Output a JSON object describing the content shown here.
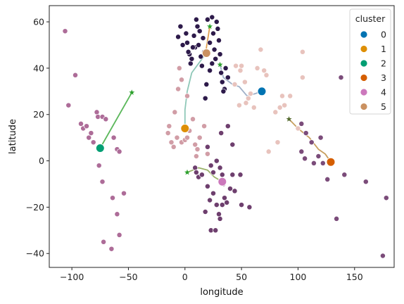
{
  "chart_data": {
    "type": "scatter",
    "xlabel": "longitude",
    "ylabel": "latitude",
    "xlim": [
      -120,
      185
    ],
    "ylim": [
      -46,
      67
    ],
    "xticks": [
      -100,
      -50,
      0,
      50,
      100,
      150
    ],
    "yticks": [
      -40,
      -20,
      0,
      20,
      40,
      60
    ],
    "grid": false,
    "legend": {
      "title": "cluster",
      "placement": "top-right",
      "entries": [
        "0",
        "1",
        "2",
        "3",
        "4",
        "5"
      ]
    },
    "cluster_colors": [
      "#0173b2",
      "#de8f05",
      "#029e73",
      "#d55e00",
      "#cc78bc",
      "#ca9161"
    ],
    "centroids": [
      {
        "cluster": "0",
        "x": 68,
        "y": 30
      },
      {
        "cluster": "1",
        "x": 0,
        "y": 14
      },
      {
        "cluster": "2",
        "x": -75,
        "y": 5.5
      },
      {
        "cluster": "3",
        "x": 129,
        "y": -0.5
      },
      {
        "cluster": "4",
        "x": 33,
        "y": -9
      },
      {
        "cluster": "5",
        "x": 19,
        "y": 46.5
      }
    ],
    "stars": [
      {
        "x": -47,
        "y": 29.5,
        "color": "#2ca02c"
      },
      {
        "x": 2,
        "y": -5,
        "color": "#2ca02c"
      },
      {
        "x": 92,
        "y": 18,
        "color": "#556b2f"
      },
      {
        "x": 31,
        "y": 41.5,
        "color": "#2ca02c"
      },
      {
        "x": 22,
        "y": 58,
        "color": "#2ca02c"
      }
    ],
    "paths": [
      {
        "color": "#5cb85c",
        "points": [
          [
            -75,
            5.5
          ],
          [
            -47,
            29.5
          ]
        ]
      },
      {
        "color": "#9ab26a",
        "points": [
          [
            2,
            -5
          ],
          [
            12,
            -3
          ],
          [
            20,
            -4
          ],
          [
            26,
            -7
          ],
          [
            33,
            -9
          ]
        ]
      },
      {
        "color": "#c8a060",
        "points": [
          [
            92,
            18
          ],
          [
            100,
            14
          ],
          [
            110,
            10
          ],
          [
            118,
            5
          ],
          [
            124,
            3
          ],
          [
            129,
            -0.5
          ]
        ]
      },
      {
        "color": "#9fb0c8",
        "points": [
          [
            31,
            41.5
          ],
          [
            34,
            36
          ],
          [
            42,
            33
          ],
          [
            48,
            32
          ],
          [
            55,
            28
          ],
          [
            62,
            29
          ],
          [
            68,
            30
          ]
        ]
      },
      {
        "color": "#e0a050",
        "points": [
          [
            22,
            58
          ],
          [
            21,
            55
          ],
          [
            20,
            52
          ],
          [
            19,
            49
          ],
          [
            19,
            46.5
          ]
        ]
      },
      {
        "color": "#8fc8b8",
        "points": [
          [
            19,
            46.5
          ],
          [
            12,
            42
          ],
          [
            6,
            38
          ],
          [
            2,
            30
          ],
          [
            0,
            22
          ],
          [
            0,
            14
          ]
        ]
      }
    ],
    "series": [
      {
        "color": "#2d1a4a",
        "points": [
          [
            -6,
            53.5
          ],
          [
            -4,
            58
          ],
          [
            1,
            55
          ],
          [
            2,
            51
          ],
          [
            4,
            46
          ],
          [
            5,
            42
          ],
          [
            8,
            54
          ],
          [
            9,
            49
          ],
          [
            11,
            58
          ],
          [
            12,
            50
          ],
          [
            13,
            56
          ],
          [
            14,
            45
          ],
          [
            16,
            53
          ],
          [
            17,
            47
          ],
          [
            20,
            61
          ],
          [
            22,
            51
          ],
          [
            24,
            62
          ],
          [
            25,
            55
          ],
          [
            26,
            48
          ],
          [
            27,
            44
          ],
          [
            28,
            60
          ],
          [
            30,
            52
          ],
          [
            31,
            46
          ],
          [
            32,
            38
          ],
          [
            33,
            34
          ],
          [
            35,
            31
          ],
          [
            36,
            40
          ],
          [
            3,
            47
          ],
          [
            6,
            44
          ],
          [
            15,
            41
          ],
          [
            18,
            27
          ],
          [
            22,
            39
          ],
          [
            38,
            36
          ],
          [
            10,
            61
          ],
          [
            29,
            57
          ],
          [
            24,
            42
          ],
          [
            34,
            30
          ],
          [
            -2,
            50
          ],
          [
            7,
            49
          ],
          [
            19,
            33
          ]
        ]
      },
      {
        "color": "#e8c3bd",
        "points": [
          [
            45,
            41
          ],
          [
            49,
            39
          ],
          [
            53,
            34
          ],
          [
            56,
            27
          ],
          [
            58,
            29
          ],
          [
            61,
            23
          ],
          [
            64,
            40
          ],
          [
            67,
            48
          ],
          [
            70,
            39
          ],
          [
            72,
            37
          ],
          [
            80,
            21
          ],
          [
            84,
            23
          ],
          [
            86,
            28
          ],
          [
            88,
            24
          ],
          [
            93,
            28
          ],
          [
            100,
            14
          ],
          [
            104,
            47
          ],
          [
            104,
            36
          ],
          [
            48,
            24
          ],
          [
            54,
            25
          ],
          [
            74,
            4
          ],
          [
            82,
            8
          ],
          [
            44,
            33
          ],
          [
            50,
            41
          ]
        ]
      },
      {
        "color": "#d19da6",
        "points": [
          [
            -15,
            12
          ],
          [
            -14,
            15
          ],
          [
            -12,
            8
          ],
          [
            -10,
            6
          ],
          [
            -9,
            21
          ],
          [
            -7,
            10
          ],
          [
            -6,
            31
          ],
          [
            -5,
            40
          ],
          [
            -3,
            8
          ],
          [
            0,
            9
          ],
          [
            2,
            28
          ],
          [
            2,
            10
          ],
          [
            4,
            13
          ],
          [
            7,
            18
          ],
          [
            9,
            7
          ],
          [
            11,
            5
          ],
          [
            13,
            10
          ],
          [
            17,
            15
          ],
          [
            20,
            3
          ],
          [
            10,
            2
          ],
          [
            -3,
            35
          ]
        ]
      },
      {
        "color": "#6e3f6e",
        "points": [
          [
            9,
            -3
          ],
          [
            10,
            -5
          ],
          [
            12,
            -7
          ],
          [
            15,
            -6
          ],
          [
            20,
            6
          ],
          [
            23,
            -2
          ],
          [
            25,
            -5
          ],
          [
            28,
            0
          ],
          [
            31,
            -3
          ],
          [
            32,
            12
          ],
          [
            33,
            -6
          ],
          [
            34,
            -10
          ],
          [
            38,
            15
          ],
          [
            42,
            -6
          ],
          [
            44,
            -13
          ],
          [
            20,
            -11
          ],
          [
            22,
            -17
          ],
          [
            25,
            -14
          ],
          [
            28,
            -19
          ],
          [
            30,
            -23
          ],
          [
            33,
            -19
          ],
          [
            35,
            -16
          ],
          [
            37,
            -18
          ],
          [
            42,
            7
          ],
          [
            49,
            -6
          ],
          [
            50,
            -19
          ],
          [
            57,
            -20
          ],
          [
            18,
            -22
          ],
          [
            23,
            -30
          ],
          [
            27,
            -30
          ],
          [
            31,
            -25
          ],
          [
            40,
            -12
          ]
        ]
      },
      {
        "color": "#7b4c7a",
        "points": [
          [
            103,
            16
          ],
          [
            107,
            12
          ],
          [
            103,
            4
          ],
          [
            106,
            1
          ],
          [
            112,
            8
          ],
          [
            118,
            2
          ],
          [
            120,
            10
          ],
          [
            122,
            -1
          ],
          [
            126,
            -8
          ],
          [
            134,
            -25
          ],
          [
            141,
            -6
          ],
          [
            160,
            -9
          ],
          [
            175,
            -41
          ],
          [
            178,
            -16
          ],
          [
            138,
            36
          ],
          [
            114,
            -1
          ]
        ]
      },
      {
        "color": "#ad6c98",
        "points": [
          [
            -106,
            56
          ],
          [
            -103,
            24
          ],
          [
            -97,
            37
          ],
          [
            -92,
            16
          ],
          [
            -90,
            14
          ],
          [
            -87,
            15
          ],
          [
            -85,
            10
          ],
          [
            -83,
            12
          ],
          [
            -81,
            8
          ],
          [
            -78,
            21
          ],
          [
            -77,
            19
          ],
          [
            -73,
            19
          ],
          [
            -70,
            18
          ],
          [
            -63,
            10
          ],
          [
            -60,
            5
          ],
          [
            -58,
            4
          ],
          [
            -76,
            -2
          ],
          [
            -73,
            -9
          ],
          [
            -54,
            -14
          ],
          [
            -64,
            -16
          ],
          [
            -60,
            -23
          ],
          [
            -58,
            -32
          ],
          [
            -72,
            -35
          ],
          [
            -65,
            -38
          ]
        ]
      }
    ]
  }
}
